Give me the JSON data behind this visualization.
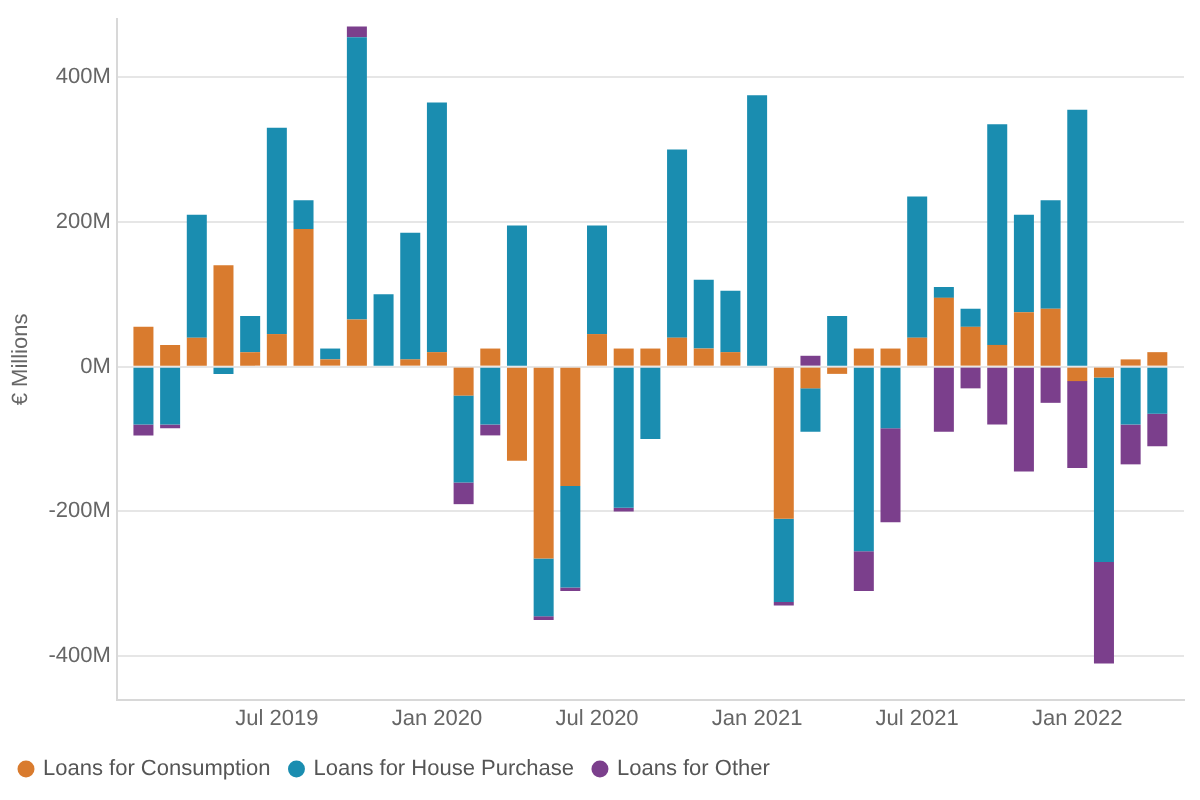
{
  "chart_data": {
    "type": "bar",
    "stacked": true,
    "ylabel": "€ Millions",
    "x": [
      "2019-02",
      "2019-03",
      "2019-04",
      "2019-05",
      "2019-06",
      "2019-07",
      "2019-08",
      "2019-09",
      "2019-10",
      "2019-11",
      "2019-12",
      "2020-01",
      "2020-02",
      "2020-03",
      "2020-04",
      "2020-05",
      "2020-06",
      "2020-07",
      "2020-08",
      "2020-09",
      "2020-10",
      "2020-11",
      "2020-12",
      "2021-01",
      "2021-02",
      "2021-03",
      "2021-04",
      "2021-05",
      "2021-06",
      "2021-07",
      "2021-08",
      "2021-09",
      "2021-10",
      "2021-11",
      "2021-12",
      "2022-01",
      "2022-02",
      "2022-03",
      "2022-04"
    ],
    "series": [
      {
        "name": "Loans for Consumption",
        "color": "#d97b2e",
        "values": [
          55,
          30,
          40,
          140,
          20,
          45,
          190,
          10,
          65,
          0,
          10,
          20,
          -40,
          25,
          -130,
          -265,
          -165,
          45,
          25,
          25,
          40,
          25,
          20,
          0,
          -210,
          -30,
          -10,
          25,
          25,
          40,
          95,
          55,
          30,
          75,
          80,
          -20,
          -15,
          10,
          20
        ]
      },
      {
        "name": "Loans for House Purchase",
        "color": "#1a8db0",
        "values": [
          -80,
          -80,
          170,
          -10,
          50,
          285,
          40,
          15,
          390,
          100,
          175,
          345,
          -120,
          -80,
          195,
          -80,
          -140,
          150,
          -195,
          -100,
          260,
          95,
          85,
          375,
          -115,
          -60,
          70,
          -255,
          -85,
          195,
          15,
          25,
          305,
          135,
          150,
          355,
          -255,
          -80,
          -65
        ]
      },
      {
        "name": "Loans for Other",
        "color": "#7b3f8c",
        "values": [
          -15,
          -5,
          0,
          0,
          0,
          0,
          0,
          0,
          15,
          0,
          0,
          0,
          -30,
          -15,
          0,
          -5,
          -5,
          0,
          -5,
          0,
          0,
          0,
          0,
          0,
          -5,
          15,
          0,
          -55,
          -130,
          0,
          -90,
          -30,
          -80,
          -145,
          -50,
          -120,
          -140,
          -55,
          -45
        ]
      }
    ],
    "xlim": [
      "2019-01",
      "2022-05"
    ],
    "xticks": [
      {
        "value": "2019-07",
        "label": "Jul 2019"
      },
      {
        "value": "2020-01",
        "label": "Jan 2020"
      },
      {
        "value": "2020-07",
        "label": "Jul 2020"
      },
      {
        "value": "2021-01",
        "label": "Jan 2021"
      },
      {
        "value": "2021-07",
        "label": "Jul 2021"
      },
      {
        "value": "2022-01",
        "label": "Jan 2022"
      }
    ],
    "ylim": [
      -460,
      480
    ],
    "yticks": [
      {
        "value": -400,
        "label": "-400M"
      },
      {
        "value": -200,
        "label": "-200M"
      },
      {
        "value": 0,
        "label": "0M"
      },
      {
        "value": 200,
        "label": "200M"
      },
      {
        "value": 400,
        "label": "400M"
      }
    ],
    "grid": "y",
    "legend": "bottom"
  }
}
